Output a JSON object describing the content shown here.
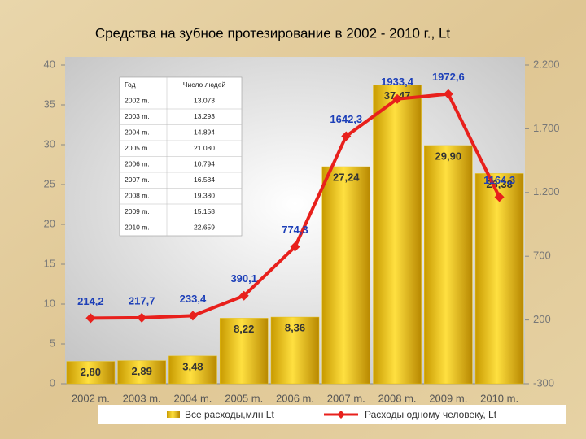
{
  "chart_data": {
    "type": "bar-line",
    "title": "Средства на зубное протезирование в 2002 - 2010 г., Lt",
    "categories": [
      "2002 m.",
      "2003 m.",
      "2004 m.",
      "2005 m.",
      "2006 m.",
      "2007 m.",
      "2008 m.",
      "2009 m.",
      "2010 m."
    ],
    "series": [
      {
        "name": "Все расходы,млн Lt",
        "type": "bar",
        "color": "#e8c010",
        "values": [
          2.8,
          2.89,
          3.48,
          8.22,
          8.36,
          27.24,
          37.47,
          29.9,
          26.38
        ],
        "value_labels": [
          "2,80",
          "2,89",
          "3,48",
          "8,22",
          "8,36",
          "27,24",
          "37,47",
          "29,90",
          "26,38"
        ]
      },
      {
        "name": "Расходы одному человеку, Lt",
        "type": "line",
        "axis": "y2",
        "color": "#e8201c",
        "values": [
          214.2,
          217.7,
          233.4,
          390.1,
          774.3,
          1642.3,
          1933.4,
          1972.6,
          1164.3
        ],
        "value_labels": [
          "214,2",
          "217,7",
          "233,4",
          "390,1",
          "774,3",
          "1642,3",
          "1933,4",
          "1972,6",
          "1164,3"
        ]
      }
    ],
    "ylim": [
      0,
      40
    ],
    "yticks": [
      0,
      5,
      10,
      15,
      20,
      25,
      30,
      35,
      40
    ],
    "y2lim": [
      -300,
      2200
    ],
    "y2ticks": [
      -300,
      200,
      700,
      {
        "value": 1200,
        "label": "1.200"
      },
      {
        "value": 1700,
        "label": "1.700"
      },
      {
        "value": 2200,
        "label": "2.200"
      }
    ],
    "table": {
      "header": [
        "Год",
        "Число людей"
      ],
      "rows": [
        [
          "2002 m.",
          "13.073"
        ],
        [
          "2003 m.",
          "13.293"
        ],
        [
          "2004 m.",
          "14.894"
        ],
        [
          "2005 m.",
          "21.080"
        ],
        [
          "2006 m.",
          "10.794"
        ],
        [
          "2007 m.",
          "16.584"
        ],
        [
          "2008 m.",
          "19.380"
        ],
        [
          "2009 m.",
          "15.158"
        ],
        [
          "2010 m.",
          "22.659"
        ]
      ]
    }
  }
}
